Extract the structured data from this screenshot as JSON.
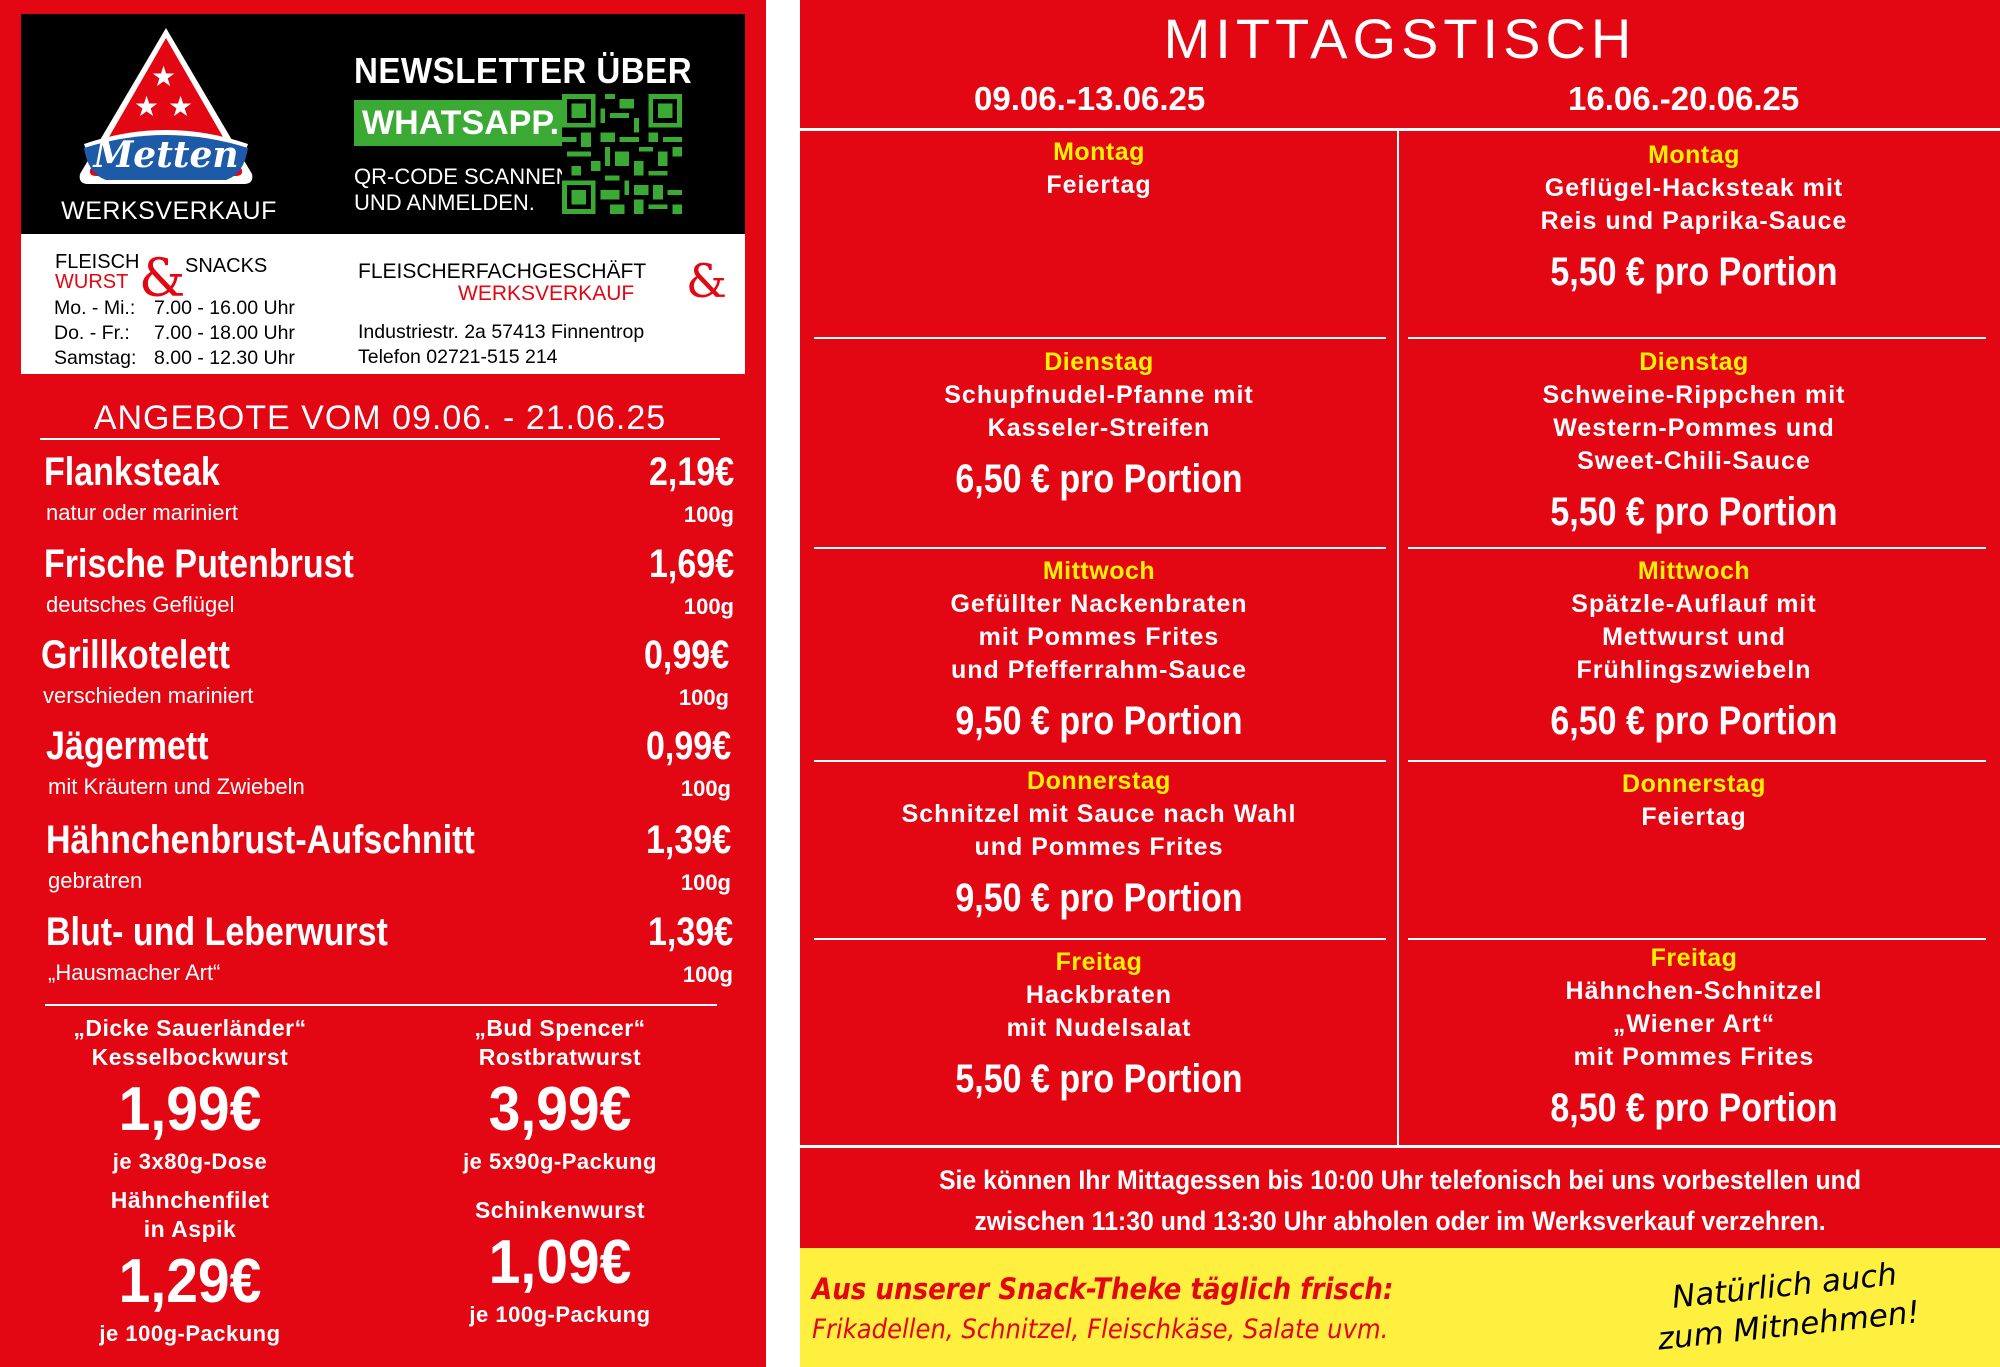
{
  "left": {
    "brand": "Metten",
    "werksverkauf": "WERKSVERKAUF",
    "newsletter_title": "NEWSLETTER ÜBER",
    "whatsapp": "WHATSAPP.",
    "qr_line1": "QR-CODE SCANNEN",
    "qr_line2": "UND ANMELDEN.",
    "fw_fleisch": "FLEISCH",
    "fw_wurst": "WURST",
    "fw_snacks": "SNACKS",
    "hours": [
      {
        "day": "Mo. - Mi.:",
        "time": "7.00 - 16.00 Uhr"
      },
      {
        "day": "Do. - Fr.:",
        "time": "7.00 - 18.00 Uhr"
      },
      {
        "day": "Samstag:",
        "time": "8.00 - 12.30 Uhr"
      }
    ],
    "fach_line1": "FLEISCHERFACHGESCHÄFT",
    "fach_line2": "WERKSVERKAUF",
    "address": "Industriestr. 2a   57413 Finnentrop",
    "phone": "Telefon 02721-515 214",
    "angebote": "ANGEBOTE VOM 09.06. - 21.06.25",
    "offers": [
      {
        "name": "Flanksteak",
        "desc": "natur oder mariniert",
        "price": "2,19€",
        "unit": "100g"
      },
      {
        "name": "Frische Putenbrust",
        "desc": "deutsches Geflügel",
        "price": "1,69€",
        "unit": "100g"
      },
      {
        "name": "Grillkotelett",
        "desc": "verschieden mariniert",
        "price": "0,99€",
        "unit": "100g"
      },
      {
        "name": "Jägermett",
        "desc": "mit Kräutern und Zwiebeln",
        "price": "0,99€",
        "unit": "100g"
      },
      {
        "name": "Hähnchenbrust-Aufschnitt",
        "desc": "gebratren",
        "price": "1,39€",
        "unit": "100g"
      },
      {
        "name": "Blut- und Leberwurst",
        "desc": "„Hausmacher Art“",
        "price": "1,39€",
        "unit": "100g"
      }
    ],
    "snacks": [
      {
        "t1": "„Dicke Sauerländer“",
        "t2": "Kesselbockwurst",
        "price": "1,99€",
        "unit": "je 3x80g-Dose"
      },
      {
        "t1": "„Bud Spencer“",
        "t2": "Rostbratwurst",
        "price": "3,99€",
        "unit": "je 5x90g-Packung"
      },
      {
        "t1": "Hähnchenfilet",
        "t2": "in Aspik",
        "price": "1,29€",
        "unit": "je 100g-Packung"
      },
      {
        "t1": "Schinkenwurst",
        "t2": "",
        "price": "1,09€",
        "unit": "je 100g-Packung"
      }
    ]
  },
  "right": {
    "title": "MITTAGSTISCH",
    "week1": "09.06.-13.06.25",
    "week2": "16.06.-20.06.25",
    "days": [
      {
        "w1": {
          "day": "Montag",
          "dish": [
            "Feiertag"
          ],
          "price": ""
        },
        "w2": {
          "day": "Montag",
          "dish": [
            "Geflügel-Hacksteak mit",
            "Reis und Paprika-Sauce"
          ],
          "price": "5,50 € pro Portion"
        }
      },
      {
        "w1": {
          "day": "Dienstag",
          "dish": [
            "Schupfnudel-Pfanne mit",
            "Kasseler-Streifen"
          ],
          "price": "6,50 € pro Portion"
        },
        "w2": {
          "day": "Dienstag",
          "dish": [
            "Schweine-Rippchen mit",
            "Western-Pommes und",
            "Sweet-Chili-Sauce"
          ],
          "price": "5,50 € pro Portion"
        }
      },
      {
        "w1": {
          "day": "Mittwoch",
          "dish": [
            "Gefüllter Nackenbraten",
            "mit Pommes Frites",
            "und Pfefferrahm-Sauce"
          ],
          "price": "9,50 € pro Portion"
        },
        "w2": {
          "day": "Mittwoch",
          "dish": [
            "Spätzle-Auflauf mit",
            "Mettwurst und",
            "Frühlingszwiebeln"
          ],
          "price": "6,50 € pro Portion"
        }
      },
      {
        "w1": {
          "day": "Donnerstag",
          "dish": [
            "Schnitzel mit Sauce nach Wahl",
            "und Pommes Frites"
          ],
          "price": "9,50 € pro Portion"
        },
        "w2": {
          "day": "Donnerstag",
          "dish": [
            "Feiertag"
          ],
          "price": ""
        }
      },
      {
        "w1": {
          "day": "Freitag",
          "dish": [
            "Hackbraten",
            "mit Nudelsalat"
          ],
          "price": "5,50 € pro Portion"
        },
        "w2": {
          "day": "Freitag",
          "dish": [
            "Hähnchen-Schnitzel",
            "„Wiener Art“",
            "mit Pommes Frites"
          ],
          "price": "8,50 € pro Portion"
        }
      }
    ],
    "note1": "Sie können Ihr Mittagessen bis 10:00 Uhr telefonisch bei uns vorbestellen und",
    "note2": "zwischen 11:30 und 13:30 Uhr abholen oder im Werksverkauf verzehren.",
    "snack_head": "Aus unserer Snack-Theke täglich frisch:",
    "snack_text": "Frikadellen, Schnitzel, Fleischkäse, Salate uvm.",
    "takeaway1": "Natürlich auch",
    "takeaway2": "zum Mitnehmen!"
  },
  "colors": {
    "red": "#e30613",
    "yellow": "#fff200",
    "whatsapp_green": "#3aaa35",
    "logo_blue": "#1d5aa8"
  }
}
